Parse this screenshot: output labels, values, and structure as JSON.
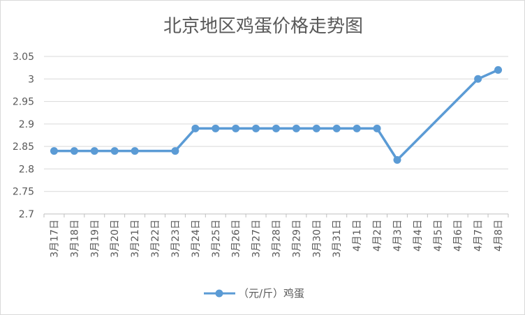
{
  "chart_data": {
    "type": "line",
    "title": "北京地区鸡蛋价格走势图",
    "xlabel": "",
    "ylabel": "",
    "ylim": [
      2.7,
      3.05
    ],
    "yticks": [
      "3.05",
      "3",
      "2.95",
      "2.9",
      "2.85",
      "2.8",
      "2.75",
      "2.7"
    ],
    "grid": true,
    "legend_position": "bottom",
    "categories": [
      "3月17日",
      "3月18日",
      "3月19日",
      "3月20日",
      "3月21日",
      "3月22日",
      "3月23日",
      "3月24日",
      "3月25日",
      "3月26日",
      "3月27日",
      "3月28日",
      "3月29日",
      "3月30日",
      "3月31日",
      "4月1日",
      "4月2日",
      "4月3日",
      "4月4日",
      "4月5日",
      "4月6日",
      "4月7日",
      "4月8日"
    ],
    "series": [
      {
        "name": "（元/斤）鸡蛋",
        "color": "#5b9bd5",
        "values": [
          2.84,
          2.84,
          2.84,
          2.84,
          2.84,
          null,
          2.84,
          2.89,
          2.89,
          2.89,
          2.89,
          2.89,
          2.89,
          2.89,
          2.89,
          2.89,
          2.89,
          2.82,
          null,
          null,
          null,
          3.0,
          3.02
        ]
      }
    ]
  }
}
